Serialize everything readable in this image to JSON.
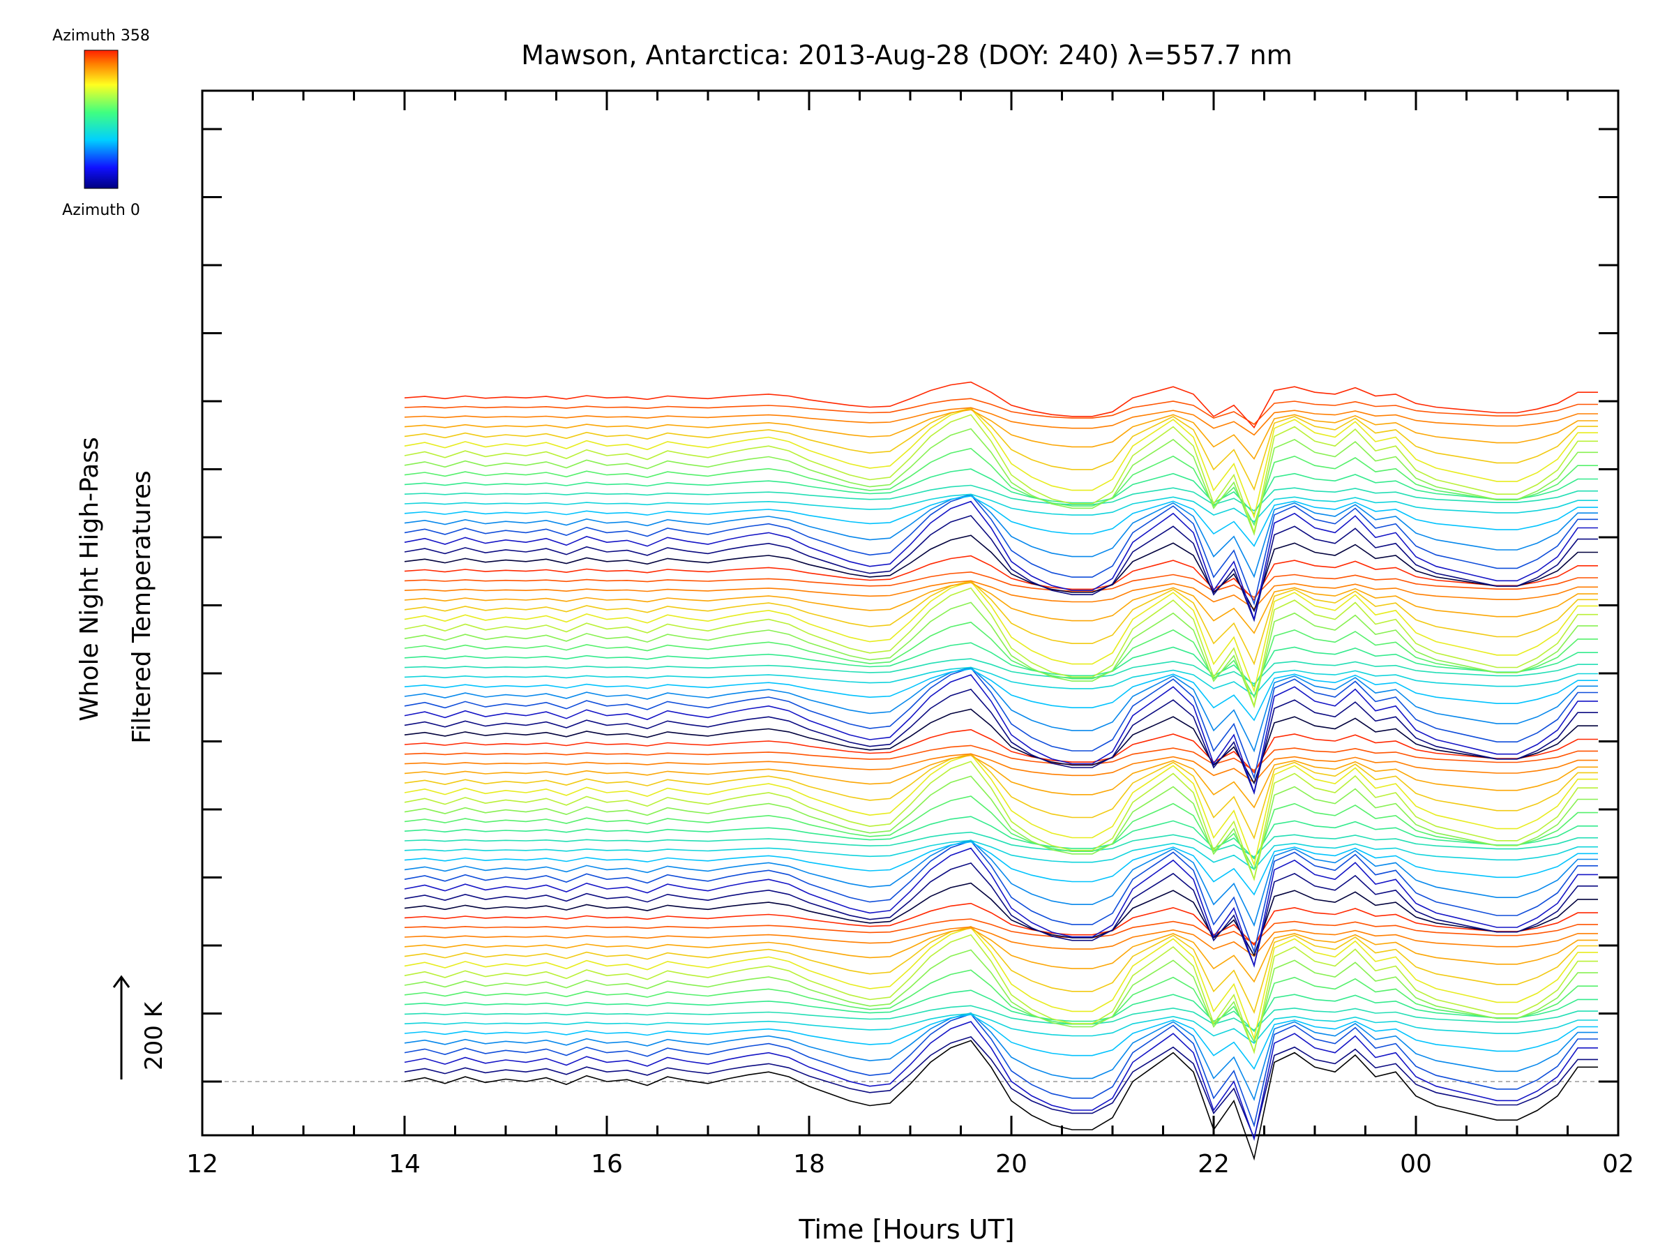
{
  "chart_data": {
    "type": "line",
    "title": "Mawson, Antarctica: 2013-Aug-28 (DOY: 240) λ=557.7 nm",
    "xlabel": "Time [Hours UT]",
    "ylabel_line1": "Whole Night High-Pass",
    "ylabel_line2": "Filtered Temperatures",
    "scale_label": "200 K",
    "x_ticks": [
      "12",
      "14",
      "16",
      "18",
      "20",
      "22",
      "00",
      "02"
    ],
    "xlim": [
      12,
      26
    ],
    "colorbar": {
      "label_top": "Azimuth 358",
      "label_bottom": "Azimuth 0",
      "range": [
        0,
        358
      ]
    },
    "grid": false,
    "series": [
      {
        "name": "",
        "x": [
          14.0,
          14.2,
          14.4,
          14.6,
          14.8,
          15.0,
          15.2,
          15.4,
          15.6,
          15.8,
          16.0,
          16.2,
          16.4,
          16.6,
          16.8,
          17.0,
          17.2,
          17.4,
          17.6,
          17.8,
          18.0,
          18.2,
          18.4,
          18.6,
          18.8,
          19.0,
          19.2,
          19.4,
          19.6,
          19.8,
          20.0,
          20.2,
          20.4,
          20.6,
          20.8,
          21.0,
          21.2,
          21.4,
          21.6,
          21.8,
          22.0,
          22.2,
          22.4,
          22.6,
          22.8,
          23.0,
          23.2,
          23.4,
          23.6,
          23.8,
          24.0,
          24.2,
          24.4,
          24.6,
          24.8,
          25.0,
          25.2,
          25.4,
          25.6,
          25.8
        ],
        "y": [
          0,
          8,
          -4,
          10,
          -2,
          5,
          0,
          8,
          -6,
          12,
          0,
          4,
          -8,
          10,
          2,
          -4,
          6,
          14,
          20,
          10,
          -10,
          -25,
          -40,
          -50,
          -45,
          -5,
          40,
          70,
          85,
          30,
          -40,
          -70,
          -90,
          -100,
          -100,
          -75,
          0,
          30,
          60,
          20,
          -100,
          -40,
          -160,
          40,
          60,
          30,
          20,
          55,
          10,
          20,
          -30,
          -50,
          -60,
          -70,
          -80,
          -80,
          -60,
          -30,
          30,
          30
        ]
      }
    ],
    "stack": {
      "count": 72,
      "offset_k": 20,
      "baseline_k": 0,
      "band_scale_k": 200,
      "colormap": "rainbow"
    }
  }
}
